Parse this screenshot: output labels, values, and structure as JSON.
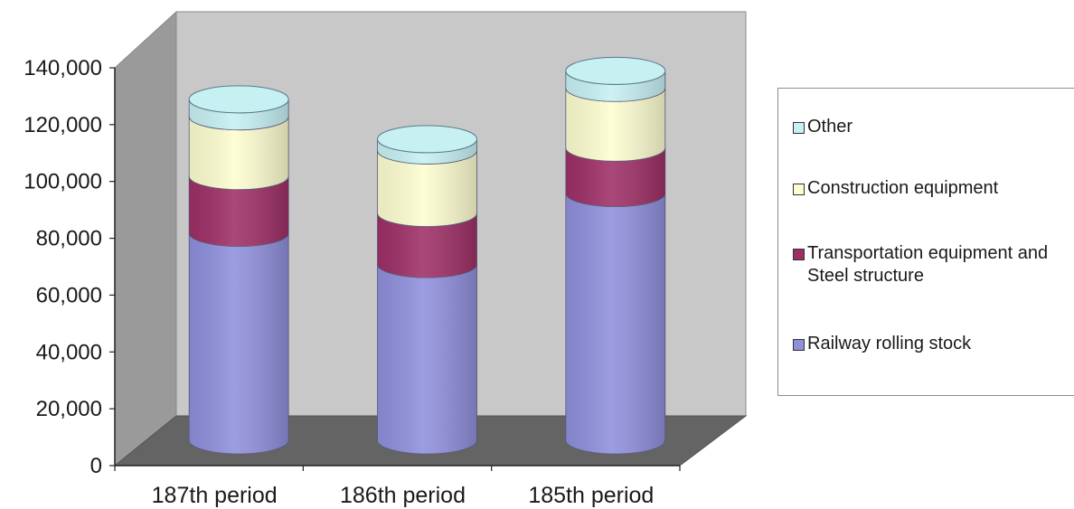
{
  "chart_data": {
    "type": "bar",
    "style": "3d-stacked-cylinder",
    "categories": [
      "187th period",
      "186th period",
      "185th period"
    ],
    "series": [
      {
        "name": "Railway rolling stock",
        "color": "#8f8fdc",
        "values": [
          73000,
          62000,
          87000
        ]
      },
      {
        "name": "Transportation equipment and Steel structure",
        "color": "#9e2f66",
        "values": [
          20000,
          18000,
          16000
        ]
      },
      {
        "name": "Construction equipment",
        "color": "#fdfdd0",
        "values": [
          21000,
          22000,
          21000
        ]
      },
      {
        "name": "Other",
        "color": "#c6f0f2",
        "values": [
          6000,
          4000,
          6000
        ]
      }
    ],
    "ylim": [
      0,
      140000
    ],
    "yticks": [
      "0",
      "20,000",
      "40,000",
      "60,000",
      "80,000",
      "100,000",
      "120,000",
      "140,000"
    ],
    "grid": false,
    "legend_position": "right",
    "legend_order": [
      "Other",
      "Construction equipment",
      "Transportation equipment and Steel structure",
      "Railway rolling stock"
    ]
  },
  "colors": {
    "back_wall": "#c8c8c8",
    "side_wall": "#9a9a9a",
    "floor": "#646464"
  }
}
